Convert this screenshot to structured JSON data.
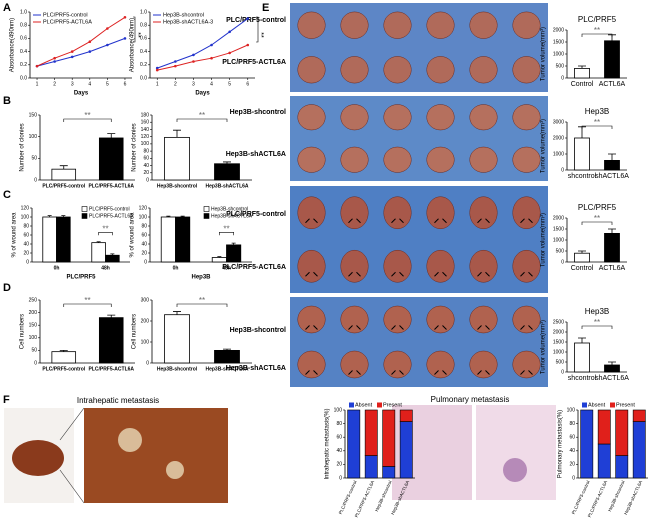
{
  "figure": {
    "panels": [
      "A",
      "B",
      "C",
      "D",
      "E",
      "F"
    ],
    "photo_labels": [
      "PLC/PRF5-control",
      "PLC/PRF5-ACTL6A",
      "Hep3B-shcontrol",
      "Hep3B-shACTL6A",
      "PLC/PRF5-control",
      "PLC/PRF5-ACTL6A",
      "Hep3B-shcontrol",
      "Hep3B-shACTL6A"
    ],
    "photo_titles": [
      "Intrahepatic metastasis",
      "Pulmonary metastasis"
    ]
  },
  "chart_data": [
    {
      "type": "line",
      "xlabel": "Days",
      "ylabel": "Absorbance(490nm)",
      "x": [
        1,
        2,
        3,
        4,
        5,
        6
      ],
      "xlim": [
        0.6,
        6.4
      ],
      "xticks": [
        1,
        2,
        3,
        4,
        5,
        6
      ],
      "ylim": [
        0,
        1
      ],
      "yticks": [
        {
          "value": 0,
          "label": "0.0"
        },
        0.2,
        0.4,
        0.6,
        0.8,
        {
          "value": 1,
          "label": "1.0"
        }
      ],
      "series": [
        {
          "name": "PLC/PRF5-control",
          "color": "#2233cc",
          "values": [
            0.18,
            0.25,
            0.32,
            0.4,
            0.5,
            0.6
          ]
        },
        {
          "name": "PLC/PRF5-ACTL6A",
          "color": "#dd2222",
          "values": [
            0.18,
            0.3,
            0.4,
            0.55,
            0.75,
            0.92
          ]
        }
      ],
      "annotation": "**"
    },
    {
      "type": "line",
      "xlabel": "Days",
      "ylabel": "Absorbance(490nm)",
      "x": [
        1,
        2,
        3,
        4,
        5,
        6
      ],
      "xlim": [
        0.6,
        6.4
      ],
      "xticks": [
        1,
        2,
        3,
        4,
        5,
        6
      ],
      "ylim": [
        0,
        1
      ],
      "yticks": [
        {
          "value": 0,
          "label": "0.0"
        },
        0.2,
        0.4,
        0.6,
        0.8,
        {
          "value": 1,
          "label": "1.0"
        }
      ],
      "series": [
        {
          "name": "Hep3B-shcontrol",
          "color": "#2233cc",
          "values": [
            0.15,
            0.25,
            0.35,
            0.5,
            0.7,
            0.9
          ]
        },
        {
          "name": "Hep3B-shACTL6A-3",
          "color": "#dd2222",
          "values": [
            0.12,
            0.18,
            0.25,
            0.3,
            0.38,
            0.5
          ]
        }
      ],
      "annotation": "**"
    },
    {
      "type": "bar",
      "ylabel": "Number of clonies",
      "categories": [
        "PLC/PRF5-control",
        "PLC/PRF5-ACTL6A"
      ],
      "values": [
        25,
        97
      ],
      "errors": [
        8,
        10
      ],
      "colors": [
        "#ffffff",
        "#000000"
      ],
      "ylim": [
        0,
        150
      ],
      "yticks": [
        0,
        50,
        100,
        150
      ],
      "annotation": "**"
    },
    {
      "type": "bar",
      "ylabel": "Number of clonies",
      "categories": [
        "Hep3B-shcontrol",
        "Hep3B-shACTL6A"
      ],
      "values": [
        118,
        45
      ],
      "errors": [
        20,
        5
      ],
      "colors": [
        "#ffffff",
        "#000000"
      ],
      "ylim": [
        0,
        180
      ],
      "yticks": [
        0,
        20,
        40,
        60,
        80,
        100,
        120,
        140,
        160,
        180
      ],
      "annotation": "**"
    },
    {
      "type": "grouped",
      "xlabel": "PLC/PRF5",
      "ylabel": "% of wound area",
      "categories": [
        "0h",
        "48h"
      ],
      "series": [
        {
          "name": "PLC/PRF5-control",
          "color": "#ffffff",
          "values": [
            100,
            43
          ],
          "errors": [
            3,
            2
          ]
        },
        {
          "name": "PLC/PRF5-ACTL6A",
          "color": "#000000",
          "values": [
            100,
            15
          ],
          "errors": [
            3,
            3
          ]
        }
      ],
      "ylim": [
        0,
        120
      ],
      "yticks": [
        0,
        20,
        40,
        60,
        80,
        100,
        120
      ],
      "annotation": "**"
    },
    {
      "type": "grouped",
      "xlabel": "Hep3B",
      "ylabel": "% of wound area",
      "categories": [
        "0h",
        "48h"
      ],
      "series": [
        {
          "name": "Hep3B-shcontrol",
          "color": "#ffffff",
          "values": [
            100,
            10
          ],
          "errors": [
            2,
            2
          ]
        },
        {
          "name": "Hep3B-shACTL6A",
          "color": "#000000",
          "values": [
            100,
            38
          ],
          "errors": [
            2,
            4
          ]
        }
      ],
      "ylim": [
        0,
        120
      ],
      "yticks": [
        0,
        20,
        40,
        60,
        80,
        100,
        120
      ],
      "annotation": "**"
    },
    {
      "type": "bar",
      "ylabel": "Cell numbers",
      "categories": [
        "PLC/PRF5-control",
        "PLC/PRF5-ACTL6A"
      ],
      "values": [
        45,
        180
      ],
      "errors": [
        5,
        10
      ],
      "colors": [
        "#ffffff",
        "#000000"
      ],
      "ylim": [
        0,
        250
      ],
      "yticks": [
        0,
        50,
        100,
        150,
        200,
        250
      ],
      "annotation": "**"
    },
    {
      "type": "bar",
      "ylabel": "Cell numbers",
      "categories": [
        "Hep3B-shcontrol",
        "Hep3B-shACTL6A"
      ],
      "values": [
        230,
        60
      ],
      "errors": [
        15,
        6
      ],
      "colors": [
        "#ffffff",
        "#000000"
      ],
      "ylim": [
        0,
        300
      ],
      "yticks": [
        0,
        100,
        200,
        300
      ],
      "annotation": "**"
    },
    {
      "type": "bar",
      "title": "PLC/PRF5",
      "ylabel": "Tumor volume(mm³)",
      "categories": [
        "Control",
        "ACTL6A"
      ],
      "values": [
        400,
        1550
      ],
      "errors": [
        100,
        250
      ],
      "colors": [
        "#ffffff",
        "#000000"
      ],
      "ylim": [
        0,
        2000
      ],
      "yticks": [
        0,
        500,
        1000,
        1500,
        2000
      ],
      "annotation": "**"
    },
    {
      "type": "bar",
      "title": "Hep3B",
      "ylabel": "Tumor volume(mm³)",
      "categories": [
        "shcontrol",
        "shACTL6A"
      ],
      "values": [
        2000,
        600
      ],
      "errors": [
        700,
        400
      ],
      "colors": [
        "#ffffff",
        "#000000"
      ],
      "ylim": [
        0,
        3000
      ],
      "yticks": [
        0,
        1000,
        2000,
        3000
      ],
      "annotation": "**"
    },
    {
      "type": "bar",
      "title": "PLC/PRF5",
      "ylabel": "Tumor volume(mm³)",
      "categories": [
        "Control",
        "ACTL6A"
      ],
      "values": [
        400,
        1300
      ],
      "errors": [
        100,
        200
      ],
      "colors": [
        "#ffffff",
        "#000000"
      ],
      "ylim": [
        0,
        2000
      ],
      "yticks": [
        0,
        500,
        1000,
        1500,
        2000
      ],
      "annotation": "**"
    },
    {
      "type": "bar",
      "title": "Hep3B",
      "ylabel": "Tumor volume(mm³)",
      "categories": [
        "shcontrol",
        "shACTL6A"
      ],
      "values": [
        1450,
        350
      ],
      "errors": [
        250,
        150
      ],
      "colors": [
        "#ffffff",
        "#000000"
      ],
      "ylim": [
        0,
        2500
      ],
      "yticks": [
        0,
        500,
        1000,
        1500,
        2000,
        2500
      ],
      "annotation": "**"
    },
    {
      "type": "stacked",
      "ylabel": "Intrahepatic metastasis(%)",
      "categories": [
        "PLC/PRF5-control",
        "PLC/PRF5-ACTL6A",
        "Hep3B-shcontrol",
        "Hep3B-shACTL6A"
      ],
      "series": [
        {
          "name": "Absent",
          "color": "#1f3fd6",
          "values": [
            100,
            33,
            17,
            83
          ]
        },
        {
          "name": "Present",
          "color": "#e0201b",
          "values": [
            0,
            67,
            83,
            17
          ]
        }
      ],
      "ylim": [
        0,
        100
      ],
      "yticks": [
        0,
        20,
        40,
        60,
        80,
        100
      ]
    },
    {
      "type": "stacked",
      "ylabel": "Pulmonary metastasis(%)",
      "categories": [
        "PLC/PRF5-control",
        "PLC/PRF5-ACTL6A",
        "Hep3B-shcontrol",
        "Hep3B-shACTL6A"
      ],
      "series": [
        {
          "name": "Absent",
          "color": "#1f3fd6",
          "values": [
            100,
            50,
            33,
            83
          ]
        },
        {
          "name": "Present",
          "color": "#e0201b",
          "values": [
            0,
            50,
            67,
            17
          ]
        }
      ],
      "ylim": [
        0,
        100
      ],
      "yticks": [
        0,
        20,
        40,
        60,
        80,
        100
      ]
    }
  ]
}
